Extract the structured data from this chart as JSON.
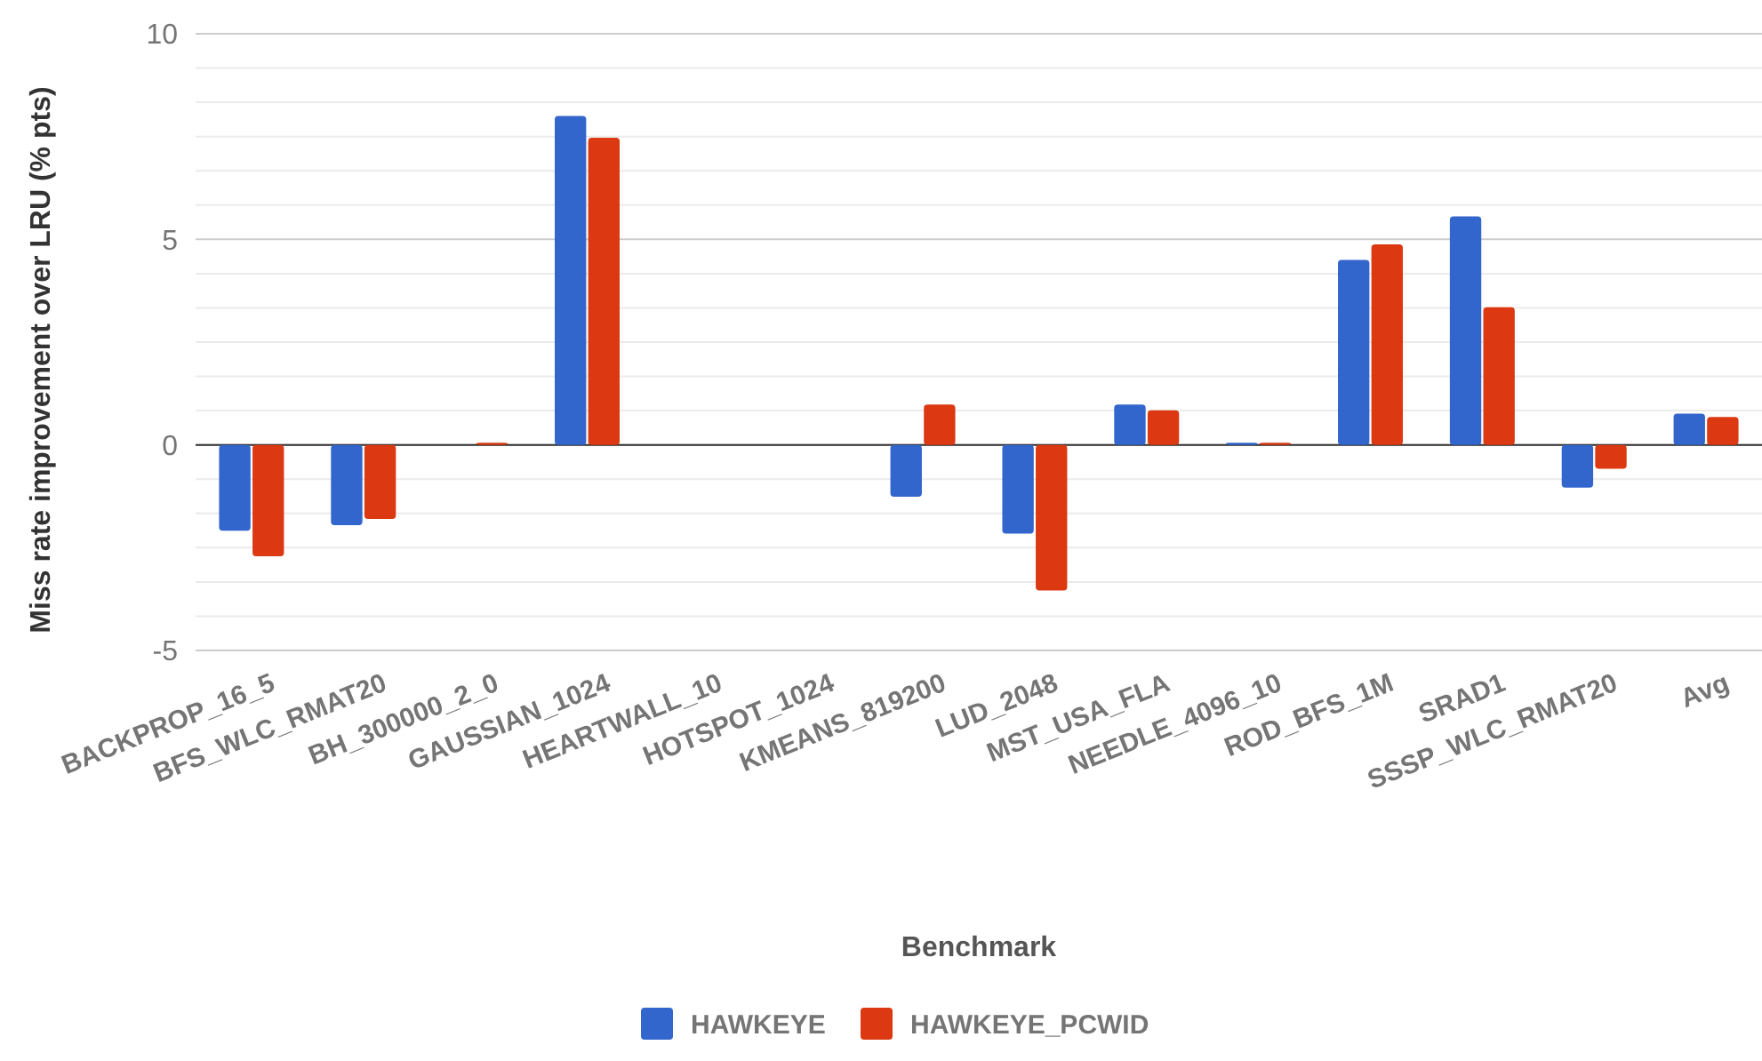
{
  "chart_data": {
    "type": "bar",
    "xlabel": "Benchmark",
    "ylabel": "Miss rate improvement over LRU (% pts)",
    "categories": [
      "BACKPROP_16_5",
      "BFS_WLC_RMAT20",
      "BH_300000_2_0",
      "GAUSSIAN_1024",
      "HEARTWALL_10",
      "HOTSPOT_1024",
      "KMEANS_819200",
      "LUD_2048",
      "MST_USA_FLA",
      "NEEDLE_4096_10",
      "ROD_BFS_1M",
      "SRAD1",
      "SSSP_WLC_RMAT20",
      "Avg"
    ],
    "series": [
      {
        "name": "HAWKEYE",
        "color": "#3366cc",
        "values": [
          -2.09,
          -1.95,
          0,
          8.0,
          0,
          0,
          -1.26,
          -2.16,
          0.98,
          0.05,
          4.5,
          5.56,
          -1.04,
          0.76
        ]
      },
      {
        "name": "HAWKEYE_PCWID",
        "color": "#dc3912",
        "values": [
          -2.71,
          -1.8,
          0.05,
          7.47,
          0,
          0,
          0.98,
          -3.54,
          0.84,
          0.05,
          4.88,
          3.35,
          -0.58,
          0.68
        ]
      }
    ],
    "ylim": [
      -5,
      10
    ],
    "yticks": [
      -5,
      0,
      5,
      10
    ],
    "grid": true,
    "legend": "bottom"
  }
}
